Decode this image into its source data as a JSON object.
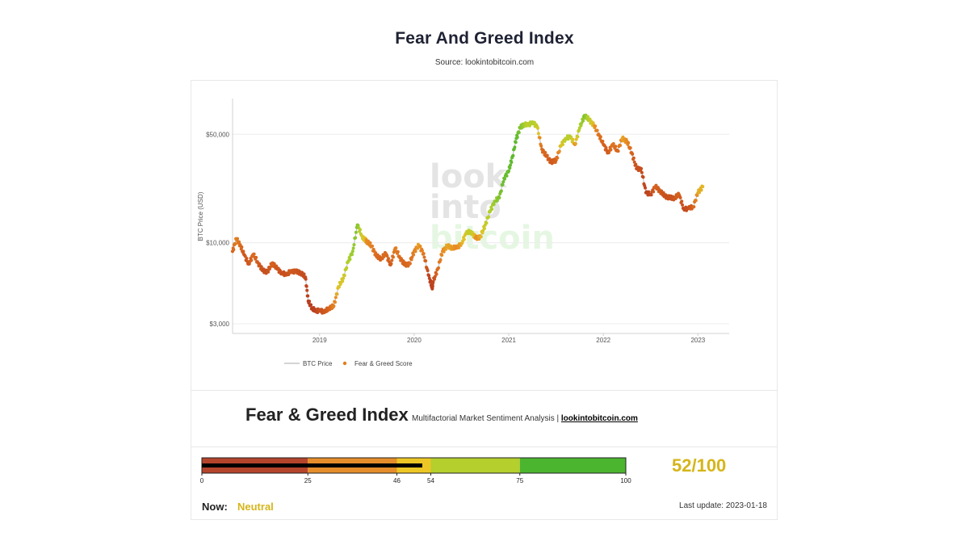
{
  "header": {
    "title": "Fear And Greed Index",
    "source": "Source: lookintobitcoin.com"
  },
  "watermark": [
    "look",
    "into",
    "bitcoin"
  ],
  "chart_data": {
    "type": "line",
    "ylabel": "BTC Price (USD)",
    "y_scale": "log",
    "ylim": [
      2600,
      85000
    ],
    "y_ticks": [
      {
        "value": 3000,
        "label": "$3,000"
      },
      {
        "value": 10000,
        "label": "$10,000"
      },
      {
        "value": 50000,
        "label": "$50,000"
      }
    ],
    "x_ticks": [
      "2019",
      "2020",
      "2021",
      "2022",
      "2023"
    ],
    "x_tick_values": [
      2019,
      2020,
      2021,
      2022,
      2023
    ],
    "xlim": [
      2018.08,
      2023.33
    ],
    "legend": [
      {
        "label": "BTC Price",
        "color": "#bbbbbb"
      },
      {
        "label": "Fear & Greed Score",
        "color": "#e07f1f"
      }
    ],
    "series": [
      {
        "name": "BTC Price",
        "x": [
          2018.08,
          2018.12,
          2018.16,
          2018.2,
          2018.25,
          2018.3,
          2018.35,
          2018.4,
          2018.45,
          2018.5,
          2018.55,
          2018.6,
          2018.65,
          2018.7,
          2018.75,
          2018.8,
          2018.85,
          2018.88,
          2018.92,
          2018.96,
          2019.0,
          2019.05,
          2019.1,
          2019.15,
          2019.2,
          2019.25,
          2019.3,
          2019.35,
          2019.4,
          2019.45,
          2019.48,
          2019.5,
          2019.55,
          2019.6,
          2019.65,
          2019.7,
          2019.75,
          2019.8,
          2019.85,
          2019.9,
          2019.95,
          2020.0,
          2020.05,
          2020.1,
          2020.15,
          2020.19,
          2020.2,
          2020.25,
          2020.3,
          2020.35,
          2020.4,
          2020.45,
          2020.5,
          2020.55,
          2020.6,
          2020.65,
          2020.7,
          2020.75,
          2020.8,
          2020.85,
          2020.9,
          2020.95,
          2021.0,
          2021.04,
          2021.08,
          2021.12,
          2021.16,
          2021.2,
          2021.25,
          2021.3,
          2021.35,
          2021.4,
          2021.45,
          2021.5,
          2021.55,
          2021.6,
          2021.65,
          2021.7,
          2021.75,
          2021.8,
          2021.85,
          2021.9,
          2021.95,
          2022.0,
          2022.05,
          2022.1,
          2022.15,
          2022.2,
          2022.25,
          2022.3,
          2022.35,
          2022.4,
          2022.45,
          2022.5,
          2022.55,
          2022.6,
          2022.65,
          2022.7,
          2022.75,
          2022.8,
          2022.85,
          2022.9,
          2022.95,
          2023.0,
          2023.05
        ],
        "values": [
          8800,
          10600,
          9700,
          8400,
          7300,
          8400,
          7400,
          6600,
          6500,
          7400,
          6800,
          6400,
          6200,
          6600,
          6500,
          6400,
          6000,
          4200,
          3800,
          3600,
          3700,
          3550,
          3800,
          3900,
          5200,
          5900,
          7500,
          8800,
          13000,
          11000,
          10400,
          10200,
          9500,
          8200,
          7900,
          8500,
          7200,
          9200,
          8000,
          7200,
          7300,
          8800,
          9600,
          8500,
          6200,
          5100,
          5600,
          6800,
          8800,
          9500,
          9300,
          9250,
          9900,
          11500,
          11800,
          10700,
          10900,
          13000,
          15800,
          18500,
          19500,
          26000,
          29000,
          36000,
          47000,
          55000,
          58000,
          57000,
          60000,
          56000,
          40000,
          36000,
          33000,
          34000,
          42000,
          47000,
          48000,
          43000,
          55000,
          66000,
          62000,
          57000,
          50000,
          43000,
          38000,
          43000,
          39000,
          47000,
          45000,
          38000,
          30000,
          30000,
          21000,
          20500,
          23000,
          21500,
          20000,
          19500,
          19400,
          20400,
          16500,
          16600,
          17000,
          21000,
          23000
        ]
      },
      {
        "name": "Fear & Greed Score",
        "values": [
          25,
          40,
          30,
          20,
          18,
          30,
          22,
          15,
          15,
          25,
          18,
          15,
          15,
          20,
          18,
          15,
          12,
          5,
          5,
          8,
          15,
          18,
          25,
          40,
          55,
          60,
          75,
          80,
          85,
          60,
          55,
          45,
          40,
          30,
          25,
          30,
          20,
          40,
          30,
          25,
          30,
          40,
          50,
          35,
          10,
          5,
          10,
          30,
          45,
          50,
          48,
          45,
          50,
          60,
          70,
          45,
          50,
          65,
          75,
          80,
          85,
          90,
          90,
          92,
          92,
          85,
          80,
          70,
          75,
          65,
          30,
          25,
          20,
          25,
          55,
          70,
          72,
          45,
          75,
          85,
          70,
          50,
          35,
          25,
          20,
          35,
          25,
          50,
          45,
          25,
          15,
          15,
          8,
          10,
          25,
          20,
          15,
          15,
          18,
          25,
          12,
          15,
          25,
          50,
          52
        ]
      }
    ]
  },
  "index_panel": {
    "title": "Fear & Greed Index",
    "subtitle": "Multifactorial Market Sentiment Analysis |",
    "link": "lookintobitcoin.com"
  },
  "gauge": {
    "current": 52,
    "segments": [
      {
        "from": 0,
        "to": 25,
        "color": "#b5442c"
      },
      {
        "from": 25,
        "to": 46,
        "color": "#e58d2a"
      },
      {
        "from": 46,
        "to": 54,
        "color": "#ecc625"
      },
      {
        "from": 54,
        "to": 75,
        "color": "#b5cf2d"
      },
      {
        "from": 75,
        "to": 100,
        "color": "#4cb52f"
      }
    ],
    "tick_labels": [
      "0",
      "25",
      "46",
      "54",
      "75",
      "100"
    ],
    "tick_values": [
      0,
      25,
      46,
      54,
      75,
      100
    ],
    "score_text": "52/100",
    "now_label": "Now:",
    "now_value": "Neutral",
    "last_update": "Last update: 2023-01-18",
    "accent_color": "#d6b51a"
  }
}
